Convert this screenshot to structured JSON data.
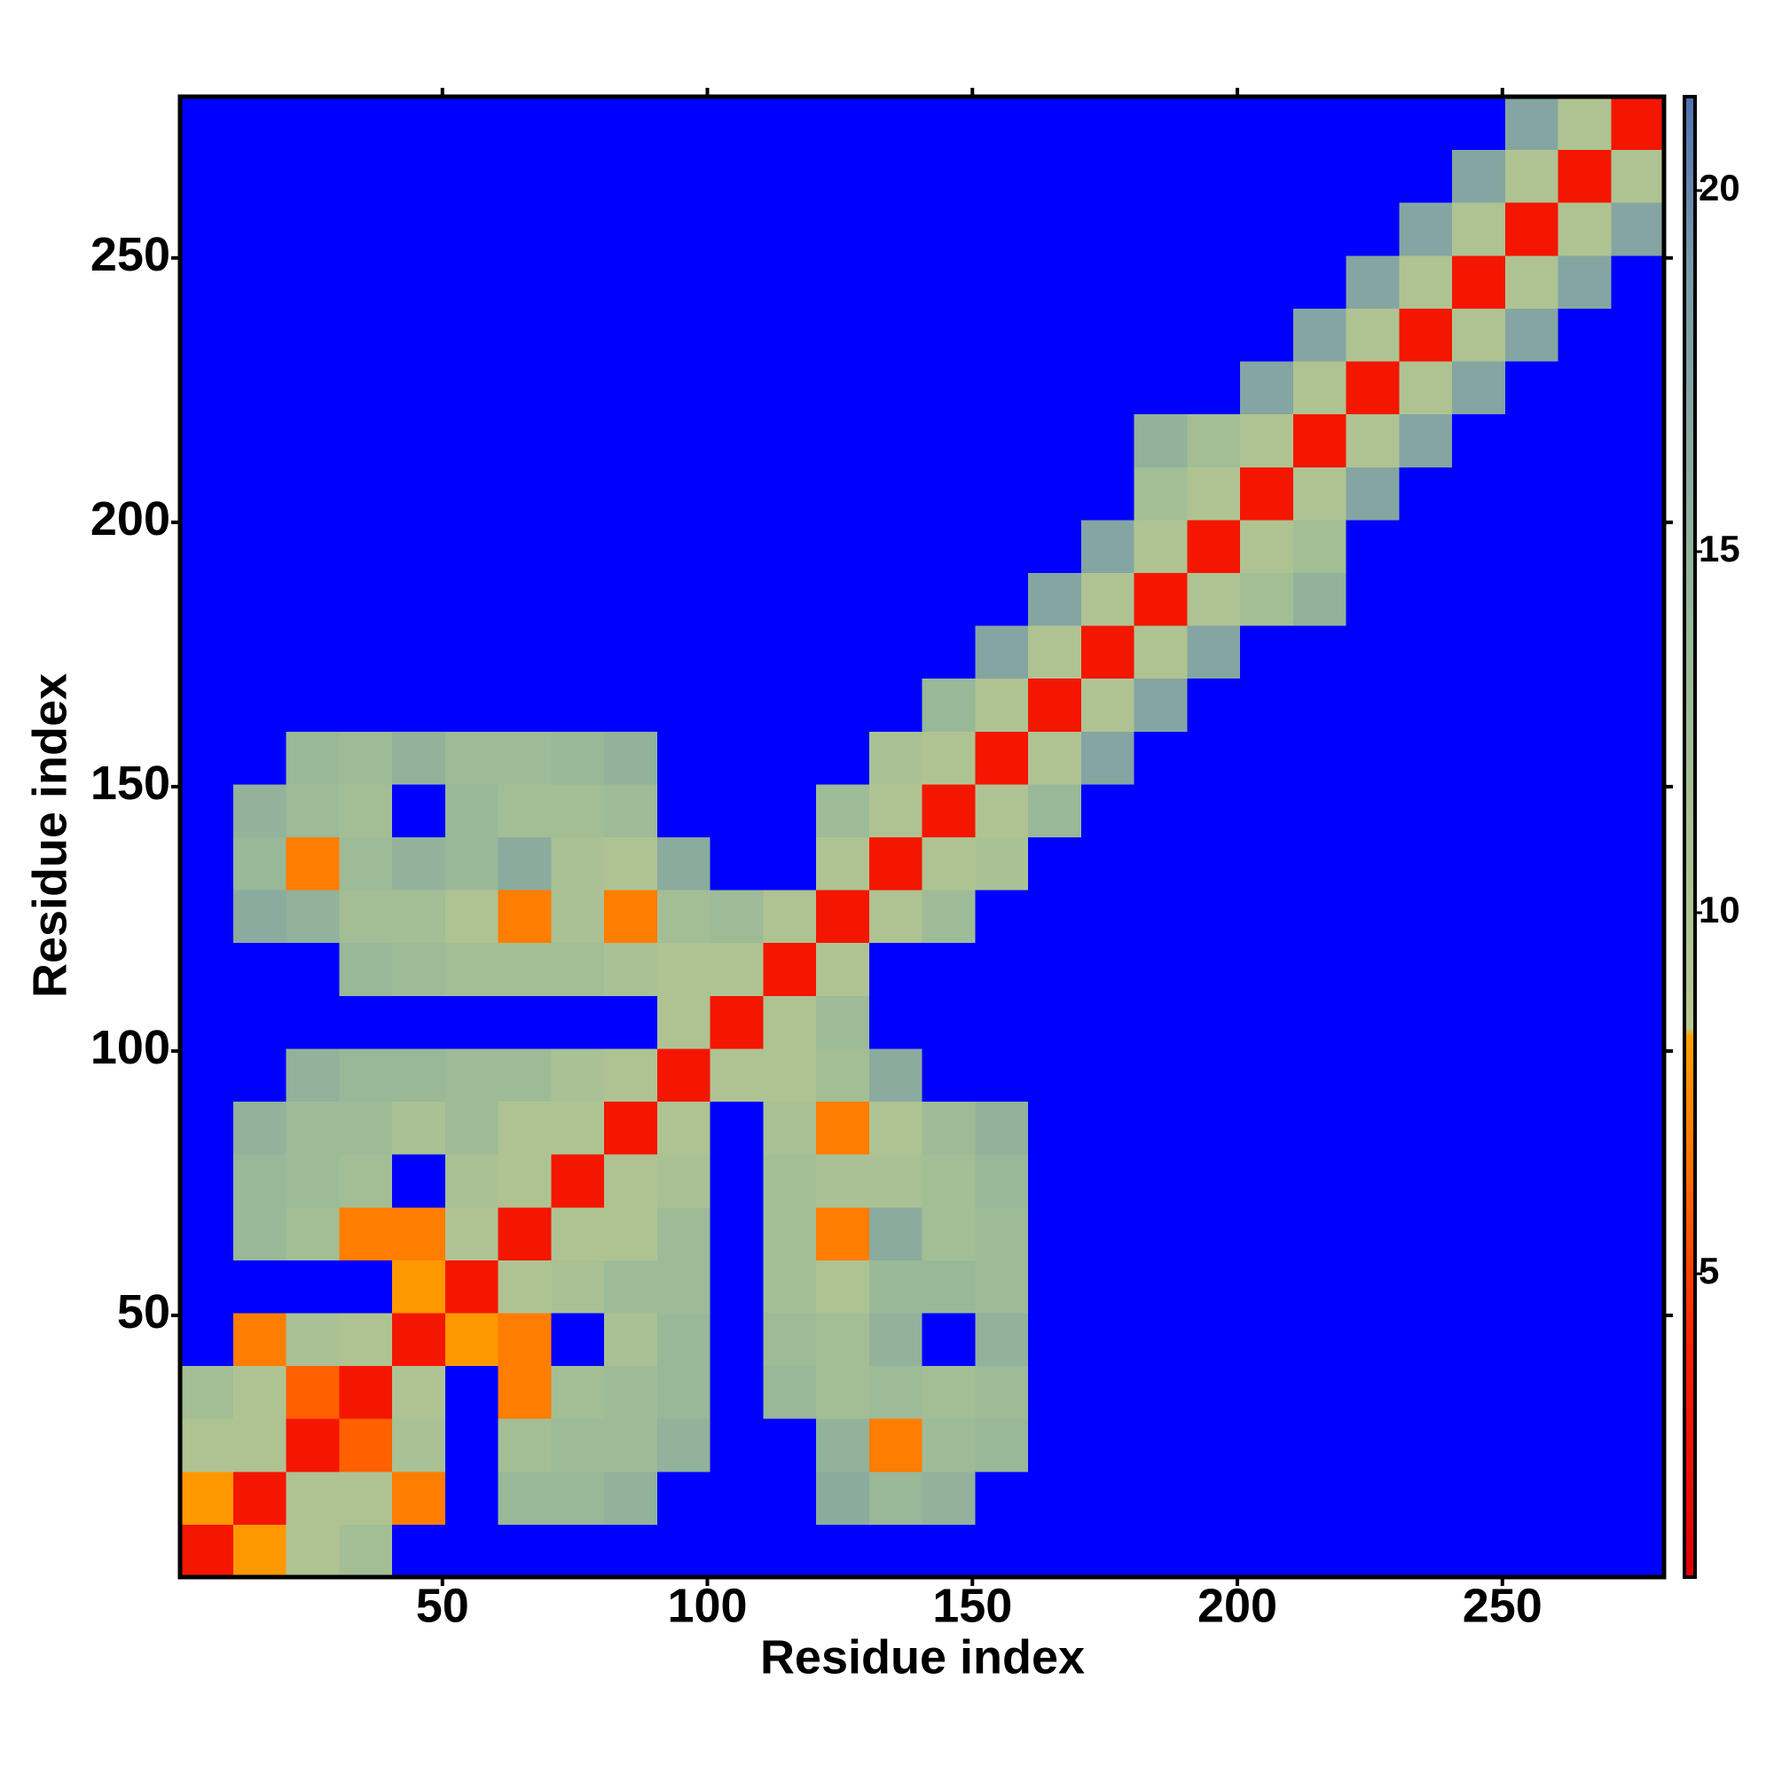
{
  "chart_data": {
    "type": "heatmap",
    "xlabel": "Residue index",
    "ylabel": "Residue index",
    "bins": [
      0.5,
      10.5,
      20.5,
      30.5,
      40.5,
      50.5,
      60.5,
      70.5,
      80.5,
      90.5,
      100.5,
      110.5,
      120.5,
      130.5,
      140.5,
      150.5,
      160.5,
      170.5,
      180.5,
      190.5,
      200.5,
      210.5,
      220.5,
      230.5,
      240.5,
      250.5,
      260.5,
      270.5,
      280.5
    ],
    "z": [
      [
        3,
        8,
        10,
        12,
        null,
        null,
        null,
        null,
        null,
        null,
        null,
        null,
        null,
        null,
        null,
        null,
        null,
        null,
        null,
        null,
        null,
        null,
        null,
        null,
        null,
        null,
        null,
        null
      ],
      [
        8,
        3,
        10,
        10,
        7,
        null,
        14,
        14,
        15,
        null,
        null,
        null,
        16,
        14,
        15,
        null,
        null,
        null,
        null,
        null,
        null,
        null,
        null,
        null,
        null,
        null,
        null,
        null
      ],
      [
        10,
        10,
        3,
        6,
        11,
        null,
        12,
        13,
        13,
        15,
        null,
        null,
        15,
        7,
        13,
        14,
        null,
        null,
        null,
        null,
        null,
        null,
        null,
        null,
        null,
        null,
        null,
        null
      ],
      [
        12,
        10,
        6,
        3,
        10,
        null,
        7,
        12,
        13,
        14,
        null,
        14,
        12,
        13,
        12,
        13,
        null,
        null,
        null,
        null,
        null,
        null,
        null,
        null,
        null,
        null,
        null,
        null
      ],
      [
        null,
        7,
        11,
        10,
        3,
        8,
        7,
        null,
        11,
        14,
        null,
        13,
        12,
        15,
        null,
        15,
        null,
        null,
        null,
        null,
        null,
        null,
        null,
        null,
        null,
        null,
        null,
        null
      ],
      [
        null,
        null,
        null,
        null,
        8,
        3,
        10,
        11,
        13,
        13,
        null,
        12,
        10,
        14,
        14,
        13,
        null,
        null,
        null,
        null,
        null,
        null,
        null,
        null,
        null,
        null,
        null,
        null
      ],
      [
        null,
        14,
        12,
        7,
        7,
        10,
        3,
        10,
        10,
        13,
        null,
        12,
        7,
        16,
        12,
        13,
        null,
        null,
        null,
        null,
        null,
        null,
        null,
        null,
        null,
        null,
        null,
        null
      ],
      [
        null,
        14,
        13,
        12,
        null,
        11,
        10,
        3,
        10,
        11,
        null,
        12,
        11,
        11,
        12,
        14,
        null,
        null,
        null,
        null,
        null,
        null,
        null,
        null,
        null,
        null,
        null,
        null
      ],
      [
        null,
        15,
        13,
        13,
        11,
        13,
        10,
        10,
        3,
        10,
        null,
        11,
        7,
        10,
        13,
        15,
        null,
        null,
        null,
        null,
        null,
        null,
        null,
        null,
        null,
        null,
        null,
        null
      ],
      [
        null,
        null,
        15,
        14,
        14,
        13,
        13,
        11,
        10,
        3,
        10,
        10,
        12,
        16,
        null,
        null,
        null,
        null,
        null,
        null,
        null,
        null,
        null,
        null,
        null,
        null,
        null,
        null
      ],
      [
        null,
        null,
        null,
        null,
        null,
        null,
        null,
        null,
        null,
        10,
        3,
        10,
        13,
        null,
        null,
        null,
        null,
        null,
        null,
        null,
        null,
        null,
        null,
        null,
        null,
        null,
        null,
        null
      ],
      [
        null,
        null,
        null,
        14,
        13,
        12,
        12,
        12,
        11,
        10,
        10,
        3,
        10,
        null,
        null,
        null,
        null,
        null,
        null,
        null,
        null,
        null,
        null,
        null,
        null,
        null,
        null,
        null
      ],
      [
        null,
        16,
        15,
        12,
        12,
        10,
        7,
        11,
        7,
        12,
        13,
        10,
        3,
        10,
        13,
        null,
        null,
        null,
        null,
        null,
        null,
        null,
        null,
        null,
        null,
        null,
        null,
        null
      ],
      [
        null,
        14,
        7,
        13,
        15,
        14,
        16,
        11,
        10,
        16,
        null,
        null,
        10,
        3,
        10,
        11,
        null,
        null,
        null,
        null,
        null,
        null,
        null,
        null,
        null,
        null,
        null,
        null
      ],
      [
        null,
        15,
        13,
        12,
        null,
        14,
        12,
        12,
        13,
        null,
        null,
        null,
        13,
        10,
        3,
        10,
        14,
        null,
        null,
        null,
        null,
        null,
        null,
        null,
        null,
        null,
        null,
        null
      ],
      [
        null,
        null,
        14,
        13,
        15,
        13,
        13,
        14,
        15,
        null,
        null,
        null,
        null,
        11,
        10,
        3,
        10,
        17,
        null,
        null,
        null,
        null,
        null,
        null,
        null,
        null,
        null,
        null
      ],
      [
        null,
        null,
        null,
        null,
        null,
        null,
        null,
        null,
        null,
        null,
        null,
        null,
        null,
        null,
        14,
        10,
        3,
        10,
        17,
        null,
        null,
        null,
        null,
        null,
        null,
        null,
        null,
        null
      ],
      [
        null,
        null,
        null,
        null,
        null,
        null,
        null,
        null,
        null,
        null,
        null,
        null,
        null,
        null,
        null,
        17,
        10,
        3,
        10,
        17,
        null,
        null,
        null,
        null,
        null,
        null,
        null,
        null
      ],
      [
        null,
        null,
        null,
        null,
        null,
        null,
        null,
        null,
        null,
        null,
        null,
        null,
        null,
        null,
        null,
        null,
        17,
        10,
        3,
        10,
        12,
        15,
        null,
        null,
        null,
        null,
        null,
        null
      ],
      [
        null,
        null,
        null,
        null,
        null,
        null,
        null,
        null,
        null,
        null,
        null,
        null,
        null,
        null,
        null,
        null,
        null,
        17,
        10,
        3,
        10,
        12,
        null,
        null,
        null,
        null,
        null,
        null
      ],
      [
        null,
        null,
        null,
        null,
        null,
        null,
        null,
        null,
        null,
        null,
        null,
        null,
        null,
        null,
        null,
        null,
        null,
        null,
        12,
        10,
        3,
        10,
        17,
        null,
        null,
        null,
        null,
        null
      ],
      [
        null,
        null,
        null,
        null,
        null,
        null,
        null,
        null,
        null,
        null,
        null,
        null,
        null,
        null,
        null,
        null,
        null,
        null,
        15,
        12,
        10,
        3,
        10,
        17,
        null,
        null,
        null,
        null
      ],
      [
        null,
        null,
        null,
        null,
        null,
        null,
        null,
        null,
        null,
        null,
        null,
        null,
        null,
        null,
        null,
        null,
        null,
        null,
        null,
        null,
        17,
        10,
        3,
        10,
        17,
        null,
        null,
        null
      ],
      [
        null,
        null,
        null,
        null,
        null,
        null,
        null,
        null,
        null,
        null,
        null,
        null,
        null,
        null,
        null,
        null,
        null,
        null,
        null,
        null,
        null,
        17,
        10,
        3,
        10,
        17,
        null,
        null
      ],
      [
        null,
        null,
        null,
        null,
        null,
        null,
        null,
        null,
        null,
        null,
        null,
        null,
        null,
        null,
        null,
        null,
        null,
        null,
        null,
        null,
        null,
        null,
        17,
        10,
        3,
        10,
        17,
        null
      ],
      [
        null,
        null,
        null,
        null,
        null,
        null,
        null,
        null,
        null,
        null,
        null,
        null,
        null,
        null,
        null,
        null,
        null,
        null,
        null,
        null,
        null,
        null,
        null,
        17,
        10,
        3,
        10,
        17
      ],
      [
        null,
        null,
        null,
        null,
        null,
        null,
        null,
        null,
        null,
        null,
        null,
        null,
        null,
        null,
        null,
        null,
        null,
        null,
        null,
        null,
        null,
        null,
        null,
        null,
        17,
        10,
        3,
        10
      ],
      [
        null,
        null,
        null,
        null,
        null,
        null,
        null,
        null,
        null,
        null,
        null,
        null,
        null,
        null,
        null,
        null,
        null,
        null,
        null,
        null,
        null,
        null,
        null,
        null,
        null,
        17,
        10,
        3
      ]
    ],
    "xlim": [
      0.5,
      280.5
    ],
    "ylim": [
      0.5,
      280.5
    ],
    "xticks": [
      50,
      100,
      150,
      200,
      250
    ],
    "yticks": [
      50,
      100,
      150,
      200,
      250
    ],
    "clim": [
      0.8,
      21.3
    ],
    "cticks": [
      5,
      10,
      15,
      20
    ],
    "colorscale": [
      [
        0.8,
        "#dd0000"
      ],
      [
        4,
        "#ff2000"
      ],
      [
        6.5,
        "#ff7000"
      ],
      [
        8.3,
        "#ffa000"
      ],
      [
        8.4,
        "#b8c890"
      ],
      [
        14,
        "#98b898"
      ],
      [
        19,
        "#7898a8"
      ],
      [
        21.3,
        "#5070b0"
      ]
    ],
    "na_color": "#0000ff"
  }
}
